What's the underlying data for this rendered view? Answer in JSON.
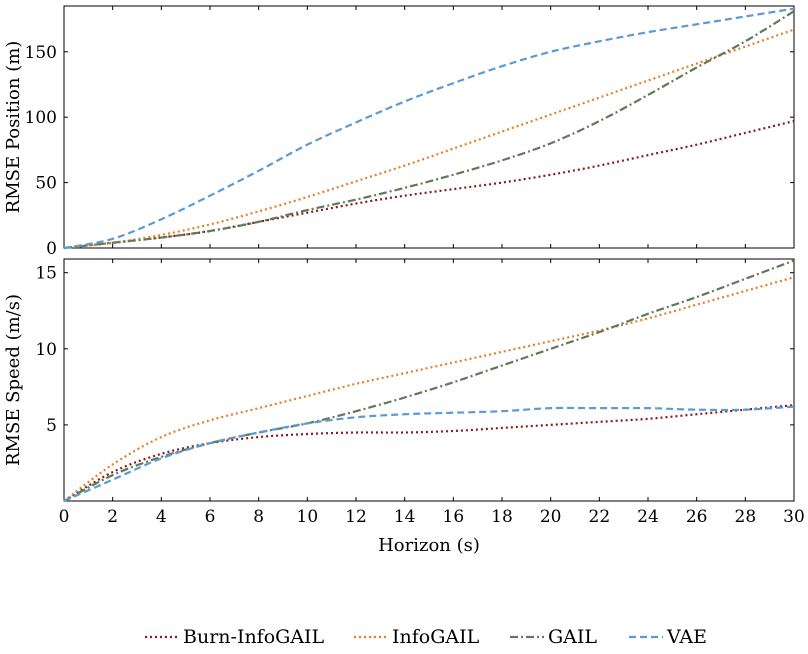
{
  "colors": {
    "Burn-InfoGAIL": "#8b1a1a",
    "InfoGAIL": "#e87d28",
    "GAIL": "#5f7a56",
    "VAE": "#5b9bd5"
  },
  "legend": {
    "burn_infogail": "Burn-InfoGAIL",
    "infogail": "InfoGAIL",
    "gail": "GAIL",
    "vae": "VAE"
  },
  "chart_data": [
    {
      "type": "line",
      "xlabel": "",
      "ylabel": "RMSE Position (m)",
      "xlim": [
        0,
        30
      ],
      "ylim": [
        0,
        185
      ],
      "yticks": [
        0,
        50,
        100,
        150
      ],
      "grid": false,
      "series": [
        {
          "name": "Burn-InfoGAIL",
          "style": "dotted",
          "x": [
            0,
            2,
            4,
            6,
            8,
            10,
            12,
            14,
            16,
            18,
            20,
            22,
            24,
            26,
            28,
            30
          ],
          "y": [
            0,
            4,
            8,
            13,
            20,
            27,
            34,
            40,
            45,
            50,
            56,
            63,
            71,
            79,
            88,
            97
          ]
        },
        {
          "name": "InfoGAIL",
          "style": "dotted",
          "x": [
            0,
            2,
            4,
            6,
            8,
            10,
            12,
            14,
            16,
            18,
            20,
            22,
            24,
            26,
            28,
            30
          ],
          "y": [
            0,
            4,
            10,
            18,
            28,
            39,
            51,
            63,
            76,
            89,
            102,
            115,
            128,
            141,
            154,
            167
          ]
        },
        {
          "name": "GAIL",
          "style": "dashdot",
          "x": [
            0,
            2,
            4,
            6,
            8,
            10,
            12,
            14,
            16,
            18,
            20,
            22,
            24,
            26,
            28,
            30
          ],
          "y": [
            0,
            4,
            8,
            13,
            20,
            29,
            37,
            46,
            56,
            67,
            80,
            97,
            117,
            138,
            158,
            181
          ]
        },
        {
          "name": "VAE",
          "style": "dashed",
          "x": [
            0,
            2,
            4,
            6,
            8,
            10,
            12,
            14,
            16,
            18,
            20,
            22,
            24,
            26,
            28,
            30
          ],
          "y": [
            0,
            7,
            22,
            40,
            59,
            79,
            96,
            112,
            126,
            139,
            150,
            158,
            165,
            171,
            177,
            183
          ]
        }
      ]
    },
    {
      "type": "line",
      "xlabel": "Horizon (s)",
      "ylabel": "RMSE Speed (m/s)",
      "xlim": [
        0,
        30
      ],
      "ylim": [
        0,
        15.9
      ],
      "xticks": [
        0,
        2,
        4,
        6,
        8,
        10,
        12,
        14,
        16,
        18,
        20,
        22,
        24,
        26,
        28,
        30
      ],
      "yticks": [
        5,
        10,
        15
      ],
      "grid": false,
      "series": [
        {
          "name": "Burn-InfoGAIL",
          "style": "dotted",
          "x": [
            0,
            2,
            4,
            6,
            8,
            10,
            12,
            14,
            16,
            18,
            20,
            22,
            24,
            26,
            28,
            30
          ],
          "y": [
            0,
            1.9,
            3.1,
            3.8,
            4.2,
            4.4,
            4.5,
            4.5,
            4.6,
            4.8,
            5.0,
            5.2,
            5.4,
            5.7,
            6.0,
            6.3
          ]
        },
        {
          "name": "InfoGAIL",
          "style": "dotted",
          "x": [
            0,
            2,
            4,
            6,
            8,
            10,
            12,
            14,
            16,
            18,
            20,
            22,
            24,
            26,
            28,
            30
          ],
          "y": [
            0,
            2.4,
            4.2,
            5.3,
            6.1,
            6.9,
            7.7,
            8.4,
            9.1,
            9.8,
            10.5,
            11.2,
            12.0,
            12.9,
            13.8,
            14.7
          ]
        },
        {
          "name": "GAIL",
          "style": "dashdot",
          "x": [
            0,
            2,
            4,
            6,
            8,
            10,
            12,
            14,
            16,
            18,
            20,
            22,
            24,
            26,
            28,
            30
          ],
          "y": [
            0,
            1.7,
            2.9,
            3.8,
            4.5,
            5.1,
            5.9,
            6.8,
            7.8,
            8.9,
            10.0,
            11.1,
            12.3,
            13.4,
            14.6,
            15.8
          ]
        },
        {
          "name": "VAE",
          "style": "dashed",
          "x": [
            0,
            2,
            4,
            6,
            8,
            10,
            12,
            14,
            16,
            18,
            20,
            22,
            24,
            26,
            28,
            30
          ],
          "y": [
            0,
            1.4,
            2.8,
            3.8,
            4.5,
            5.1,
            5.5,
            5.7,
            5.8,
            5.9,
            6.1,
            6.1,
            6.1,
            6.0,
            6.0,
            6.2
          ]
        }
      ]
    }
  ]
}
